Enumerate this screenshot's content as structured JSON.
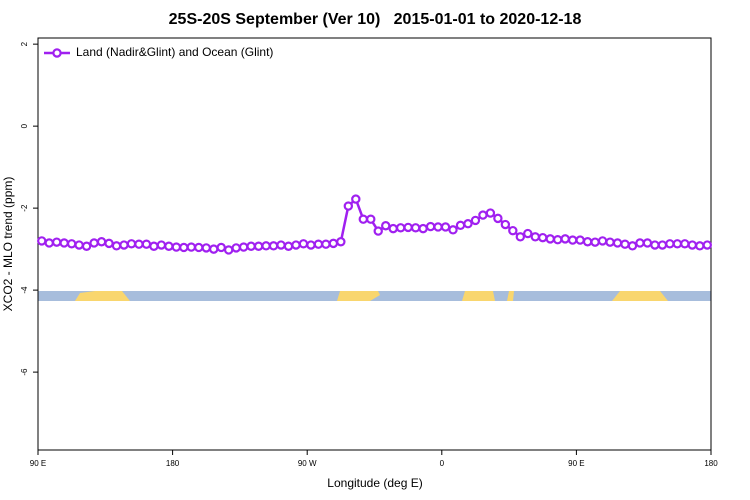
{
  "chart_data": {
    "type": "line",
    "title": "25S-20S September (Ver 10)   2015-01-01 to 2020-12-18",
    "xlabel": "Longitude (deg E)",
    "ylabel": "XCO2 - MLO trend (ppm)",
    "legend": "top-left",
    "xlim": [
      90,
      540
    ],
    "ylim": [
      -7.9,
      2.15
    ],
    "xticks": [
      {
        "value": 90,
        "label": "90 E"
      },
      {
        "value": 180,
        "label": "180"
      },
      {
        "value": 270,
        "label": "90 W"
      },
      {
        "value": 360,
        "label": "0"
      },
      {
        "value": 450,
        "label": "90 E"
      },
      {
        "value": 540,
        "label": "180"
      }
    ],
    "yticks": [
      2,
      0,
      -2,
      -4,
      -6
    ],
    "x": [
      92.5,
      97.5,
      102.5,
      107.5,
      112.5,
      117.5,
      122.5,
      127.5,
      132.5,
      137.5,
      142.5,
      147.5,
      152.5,
      157.5,
      162.5,
      167.5,
      172.5,
      177.5,
      182.5,
      187.5,
      192.5,
      197.5,
      202.5,
      207.5,
      212.5,
      217.5,
      222.5,
      227.5,
      232.5,
      237.5,
      242.5,
      247.5,
      252.5,
      257.5,
      262.5,
      267.5,
      272.5,
      277.5,
      282.5,
      287.5,
      292.5,
      297.5,
      302.5,
      307.5,
      312.5,
      317.5,
      322.5,
      327.5,
      332.5,
      337.5,
      342.5,
      347.5,
      352.5,
      357.5,
      362.5,
      367.5,
      372.5,
      377.5,
      382.5,
      387.5,
      392.5,
      397.5,
      402.5,
      407.5,
      412.5,
      417.5,
      422.5,
      427.5,
      432.5,
      437.5,
      442.5,
      447.5,
      452.5,
      457.5,
      462.5,
      467.5,
      472.5,
      477.5,
      482.5,
      487.5,
      492.5,
      497.5,
      502.5,
      507.5,
      512.5,
      517.5,
      522.5,
      527.5,
      532.5,
      537.5
    ],
    "series": [
      {
        "name": "Land (Nadir&Glint) and Ocean (Glint)",
        "color": "#a020f0",
        "values": [
          -2.8,
          -2.85,
          -2.83,
          -2.85,
          -2.87,
          -2.9,
          -2.93,
          -2.85,
          -2.82,
          -2.86,
          -2.92,
          -2.9,
          -2.87,
          -2.88,
          -2.88,
          -2.93,
          -2.9,
          -2.93,
          -2.95,
          -2.96,
          -2.95,
          -2.96,
          -2.97,
          -3.0,
          -2.96,
          -3.02,
          -2.97,
          -2.95,
          -2.93,
          -2.93,
          -2.92,
          -2.92,
          -2.9,
          -2.93,
          -2.9,
          -2.87,
          -2.9,
          -2.88,
          -2.88,
          -2.86,
          -2.82,
          -1.95,
          -1.78,
          -2.27,
          -2.27,
          -2.56,
          -2.43,
          -2.5,
          -2.48,
          -2.47,
          -2.48,
          -2.5,
          -2.45,
          -2.46,
          -2.46,
          -2.53,
          -2.42,
          -2.38,
          -2.3,
          -2.17,
          -2.12,
          -2.25,
          -2.4,
          -2.55,
          -2.7,
          -2.62,
          -2.7,
          -2.72,
          -2.75,
          -2.77,
          -2.75,
          -2.78,
          -2.78,
          -2.82,
          -2.83,
          -2.8,
          -2.83,
          -2.85,
          -2.88,
          -2.92,
          -2.85,
          -2.85,
          -2.9,
          -2.9,
          -2.87,
          -2.87,
          -2.87,
          -2.9,
          -2.92,
          -2.9
        ]
      }
    ]
  }
}
